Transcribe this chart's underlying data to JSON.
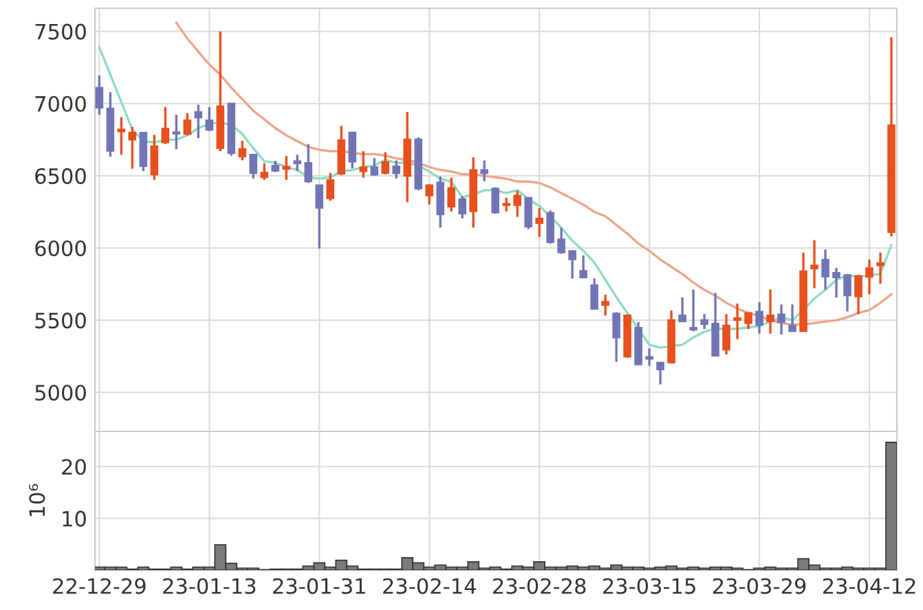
{
  "chart_data": [
    {
      "type": "candlestick",
      "categories": [
        null,
        null,
        null,
        null,
        null,
        null,
        null,
        null,
        null,
        null,
        null,
        null,
        null,
        null,
        null,
        null,
        null,
        null,
        null,
        null,
        null,
        null,
        null,
        null,
        null,
        null,
        null,
        null,
        null,
        null,
        null,
        null,
        null,
        null,
        null,
        null,
        null,
        null,
        null,
        null,
        null,
        null,
        null,
        null,
        null,
        null,
        null,
        null,
        null,
        null,
        null,
        null,
        null,
        null,
        null,
        null,
        null,
        null,
        null,
        null,
        null,
        null,
        null,
        null,
        null,
        null,
        null,
        null,
        null,
        null,
        null,
        null,
        null
      ],
      "ohlc": [
        [
          7111,
          7195,
          6922,
          6970
        ],
        [
          6967,
          7079,
          6632,
          6671
        ],
        [
          6806,
          6906,
          6645,
          6822
        ],
        [
          6748,
          6838,
          6549,
          6800
        ],
        [
          6800,
          6800,
          6533,
          6565
        ],
        [
          6507,
          6783,
          6472,
          6706
        ],
        [
          6729,
          6976,
          6720,
          6828
        ],
        [
          6803,
          6922,
          6684,
          6790
        ],
        [
          6787,
          6934,
          6780,
          6886
        ],
        [
          6944,
          6992,
          6761,
          6902
        ],
        [
          6886,
          6976,
          6810,
          6816
        ],
        [
          6690,
          7500,
          6671,
          6983
        ],
        [
          7002,
          7002,
          6639,
          6655
        ],
        [
          6632,
          6742,
          6607,
          6687
        ],
        [
          6648,
          6648,
          6481,
          6517
        ],
        [
          6488,
          6587,
          6472,
          6523
        ],
        [
          6571,
          6603,
          6526,
          6533
        ],
        [
          6546,
          6636,
          6472,
          6565
        ],
        [
          6603,
          6645,
          6533,
          6584
        ],
        [
          6591,
          6719,
          6450,
          6459
        ],
        [
          6436,
          6436,
          5996,
          6276
        ],
        [
          6343,
          6520,
          6327,
          6472
        ],
        [
          6513,
          6846,
          6505,
          6747
        ],
        [
          6801,
          6801,
          6551,
          6596
        ],
        [
          6529,
          6670,
          6487,
          6561
        ],
        [
          6561,
          6622,
          6500,
          6506
        ],
        [
          6516,
          6663,
          6510,
          6596
        ],
        [
          6567,
          6606,
          6481,
          6516
        ],
        [
          6497,
          6942,
          6317,
          6753
        ],
        [
          6753,
          6766,
          6400,
          6410
        ],
        [
          6362,
          6440,
          6301,
          6436
        ],
        [
          6455,
          6494,
          6141,
          6231
        ],
        [
          6285,
          6487,
          6253,
          6417
        ],
        [
          6340,
          6359,
          6205,
          6237
        ],
        [
          6253,
          6628,
          6141,
          6542
        ],
        [
          6542,
          6606,
          6462,
          6516
        ],
        [
          6413,
          6420,
          6237,
          6244
        ],
        [
          6295,
          6349,
          6253,
          6308
        ],
        [
          6295,
          6397,
          6215,
          6365
        ],
        [
          6349,
          6352,
          6131,
          6147
        ],
        [
          6170,
          6276,
          6077,
          6205
        ],
        [
          6244,
          6260,
          6030,
          6038
        ],
        [
          6061,
          6141,
          5960,
          5968
        ],
        [
          5981,
          5985,
          5788,
          5920
        ],
        [
          5843,
          5949,
          5790,
          5795
        ],
        [
          5744,
          5789,
          5575,
          5577
        ],
        [
          5603,
          5676,
          5532,
          5628
        ],
        [
          5548,
          5555,
          5212,
          5378
        ],
        [
          5247,
          5540,
          5240,
          5535
        ],
        [
          5449,
          5487,
          5190,
          5192
        ],
        [
          5247,
          5305,
          5183,
          5231
        ],
        [
          5208,
          5210,
          5055,
          5157
        ],
        [
          5205,
          5567,
          5200,
          5503
        ],
        [
          5535,
          5657,
          5487,
          5490
        ],
        [
          5449,
          5712,
          5423,
          5433
        ],
        [
          5503,
          5542,
          5439,
          5471
        ],
        [
          5478,
          5689,
          5250,
          5253
        ],
        [
          5295,
          5542,
          5263,
          5465
        ],
        [
          5500,
          5615,
          5369,
          5516
        ],
        [
          5478,
          5555,
          5439,
          5551
        ],
        [
          5561,
          5625,
          5407,
          5465
        ],
        [
          5490,
          5712,
          5407,
          5535
        ],
        [
          5542,
          5609,
          5401,
          5487
        ],
        [
          5465,
          5609,
          5420,
          5423
        ],
        [
          5423,
          5968,
          5420,
          5840
        ],
        [
          5856,
          6054,
          5721,
          5881
        ],
        [
          5920,
          5990,
          5712,
          5801
        ],
        [
          5830,
          5862,
          5657,
          5795
        ],
        [
          5814,
          5820,
          5561,
          5670
        ],
        [
          5663,
          5814,
          5542,
          5808
        ],
        [
          5798,
          5920,
          5680,
          5862
        ],
        [
          5878,
          5968,
          5753,
          5897
        ],
        [
          6108,
          7459,
          6080,
          6851
        ]
      ],
      "colors": [
        "#7275b5",
        "#7275b5",
        "#e8501e",
        "#e8501e",
        "#7275b5",
        "#e8501e",
        "#e8501e",
        "#7275b5",
        "#e8501e",
        "#7275b5",
        "#7275b5",
        "#e8501e",
        "#7275b5",
        "#e8501e",
        "#7275b5",
        "#e8501e",
        "#7275b5",
        "#e8501e",
        "#7275b5",
        "#7275b5",
        "#7275b5",
        "#e8501e",
        "#e8501e",
        "#7275b5",
        "#e8501e",
        "#7275b5",
        "#e8501e",
        "#7275b5",
        "#e8501e",
        "#7275b5",
        "#e8501e",
        "#7275b5",
        "#e8501e",
        "#7275b5",
        "#e8501e",
        "#7275b5",
        "#7275b5",
        "#e8501e",
        "#e8501e",
        "#7275b5",
        "#e8501e",
        "#7275b5",
        "#7275b5",
        "#7275b5",
        "#7275b5",
        "#7275b5",
        "#e8501e",
        "#7275b5",
        "#e8501e",
        "#7275b5",
        "#7275b5",
        "#7275b5",
        "#e8501e",
        "#7275b5",
        "#7275b5",
        "#7275b5",
        "#7275b5",
        "#e8501e",
        "#e8501e",
        "#e8501e",
        "#7275b5",
        "#e8501e",
        "#7275b5",
        "#7275b5",
        "#e8501e",
        "#e8501e",
        "#7275b5",
        "#7275b5",
        "#7275b5",
        "#e8501e",
        "#e8501e",
        "#e8501e",
        "#e8501e"
      ],
      "series": [
        {
          "type": "line",
          "color": "#8fdcc0",
          "values": [
            7390,
            7200,
            7010,
            6820,
            6740,
            6730,
            6750,
            6750,
            6780,
            6830,
            6860,
            6870,
            6850,
            6790,
            6690,
            6600,
            6590,
            6560,
            6540,
            6490,
            6480,
            6490,
            6530,
            6540,
            6560,
            6570,
            6610,
            6590,
            6590,
            6570,
            6530,
            6480,
            6460,
            6350,
            6370,
            6400,
            6400,
            6380,
            6400,
            6340,
            6290,
            6220,
            6140,
            6050,
            5980,
            5900,
            5780,
            5660,
            5550,
            5440,
            5330,
            5310,
            5320,
            5330,
            5380,
            5420,
            5440,
            5440,
            5440,
            5450,
            5460,
            5490,
            5520,
            5500,
            5570,
            5650,
            5710,
            5780,
            5810,
            5800,
            5810,
            5820,
            6020
          ]
        },
        {
          "type": "line",
          "color": "#f0a48a",
          "values": [
            null,
            null,
            null,
            null,
            null,
            null,
            null,
            7560,
            7450,
            7360,
            7270,
            7200,
            7110,
            7030,
            6950,
            6890,
            6830,
            6780,
            6740,
            6700,
            6680,
            6670,
            6670,
            6660,
            6650,
            6650,
            6640,
            6620,
            6610,
            6590,
            6560,
            6540,
            6530,
            6510,
            6510,
            6500,
            6490,
            6480,
            6460,
            6460,
            6450,
            6420,
            6380,
            6340,
            6300,
            6250,
            6220,
            6160,
            6100,
            6030,
            5980,
            5920,
            5870,
            5820,
            5760,
            5710,
            5670,
            5620,
            5580,
            5550,
            5530,
            5500,
            5480,
            5470,
            5470,
            5480,
            5490,
            5500,
            5520,
            5550,
            5570,
            5620,
            5680
          ]
        }
      ],
      "ylim": [
        4730,
        7660
      ],
      "yticks": [
        5000,
        5500,
        6000,
        6500,
        7000,
        7500
      ],
      "grid": true,
      "tick_labels": "y"
    },
    {
      "type": "bar",
      "ylabel": "10⁶",
      "color": "#7a7a7a",
      "categories": [
        "22-12-29",
        null,
        null,
        null,
        null,
        null,
        null,
        null,
        null,
        null,
        "23-01-13",
        null,
        null,
        null,
        null,
        null,
        null,
        null,
        null,
        null,
        "23-01-31",
        null,
        null,
        null,
        null,
        null,
        null,
        null,
        null,
        null,
        "23-02-14",
        null,
        null,
        null,
        null,
        null,
        null,
        null,
        null,
        null,
        "23-02-28",
        null,
        null,
        null,
        null,
        null,
        null,
        null,
        null,
        null,
        "23-03-15",
        null,
        null,
        null,
        null,
        null,
        null,
        null,
        null,
        null,
        "23-03-29",
        null,
        null,
        null,
        null,
        null,
        null,
        null,
        null,
        null,
        "23-04-12",
        null,
        null
      ],
      "values": [
        0.6,
        0.6,
        0.6,
        0.2,
        0.6,
        0.2,
        0.2,
        0.6,
        0.2,
        0.6,
        0.6,
        4.9,
        1.3,
        0.4,
        0.4,
        0.1,
        0.2,
        0.2,
        0.2,
        0.8,
        1.4,
        0.6,
        1.9,
        0.8,
        0.2,
        0.2,
        0.2,
        0.2,
        2.4,
        1.4,
        0.6,
        1.0,
        0.6,
        0.6,
        1.6,
        0.4,
        0.6,
        0.2,
        0.8,
        0.6,
        1.6,
        0.6,
        0.6,
        0.8,
        0.6,
        0.8,
        0.4,
        1.0,
        0.6,
        0.6,
        0.4,
        0.6,
        0.8,
        0.4,
        0.6,
        0.4,
        0.6,
        0.6,
        0.4,
        0.1,
        0.4,
        0.6,
        0.4,
        0.4,
        2.2,
        1.0,
        0.4,
        0.4,
        0.6,
        0.4,
        0.4,
        0.4,
        24.7
      ],
      "ylim": [
        0,
        26.8
      ],
      "yticks": [
        10,
        20
      ],
      "grid": true
    }
  ]
}
